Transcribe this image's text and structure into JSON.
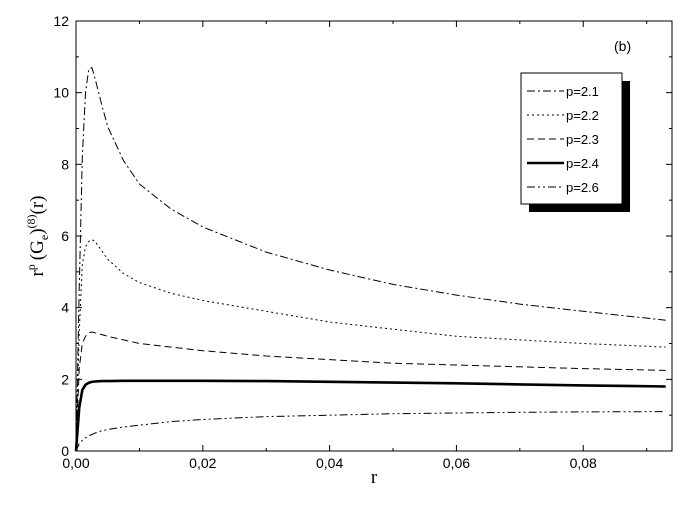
{
  "chart_data": {
    "type": "line",
    "panel_label": "(b)",
    "xlabel": "r",
    "ylabel_parts": {
      "base": "r",
      "power": "p",
      "mid": "(G",
      "sub": "e",
      "close": ")",
      "sup": "(8)",
      "end": "(r)"
    },
    "xlim": [
      0.0,
      0.094
    ],
    "ylim": [
      0,
      12
    ],
    "x_ticks": [
      0.0,
      0.02,
      0.04,
      0.06,
      0.08
    ],
    "x_tick_labels": [
      "0,00",
      "0,02",
      "0,04",
      "0,06",
      "0,08"
    ],
    "y_ticks": [
      0,
      2,
      4,
      6,
      8,
      10,
      12
    ],
    "y_tick_labels": [
      "0",
      "2",
      "4",
      "6",
      "8",
      "10",
      "12"
    ],
    "legend_position": "top-right",
    "grid": false,
    "series": [
      {
        "name": "p=2.1",
        "dash": "dashdot",
        "width": 1,
        "x": [
          0.0,
          0.0005,
          0.001,
          0.0015,
          0.002,
          0.0025,
          0.003,
          0.004,
          0.005,
          0.0075,
          0.01,
          0.015,
          0.02,
          0.03,
          0.04,
          0.05,
          0.06,
          0.07,
          0.08,
          0.093
        ],
        "y": [
          0.0,
          4.5,
          8.2,
          10.0,
          10.65,
          10.7,
          10.4,
          9.7,
          9.05,
          8.1,
          7.45,
          6.75,
          6.25,
          5.55,
          5.05,
          4.65,
          4.35,
          4.1,
          3.9,
          3.65
        ]
      },
      {
        "name": "p=2.2",
        "dash": "dotted",
        "width": 1,
        "x": [
          0.0,
          0.0005,
          0.001,
          0.0015,
          0.002,
          0.0025,
          0.003,
          0.004,
          0.005,
          0.0075,
          0.01,
          0.015,
          0.02,
          0.03,
          0.04,
          0.05,
          0.06,
          0.07,
          0.08,
          0.093
        ],
        "y": [
          0.0,
          3.3,
          5.2,
          5.7,
          5.85,
          5.9,
          5.85,
          5.6,
          5.35,
          4.95,
          4.7,
          4.4,
          4.2,
          3.9,
          3.6,
          3.4,
          3.2,
          3.1,
          3.0,
          2.9
        ]
      },
      {
        "name": "p=2.3",
        "dash": "dashed",
        "width": 1,
        "x": [
          0.0,
          0.0005,
          0.001,
          0.0015,
          0.002,
          0.0025,
          0.003,
          0.004,
          0.005,
          0.0075,
          0.01,
          0.015,
          0.02,
          0.03,
          0.04,
          0.05,
          0.06,
          0.07,
          0.08,
          0.093
        ],
        "y": [
          0.0,
          2.3,
          3.0,
          3.2,
          3.3,
          3.32,
          3.3,
          3.25,
          3.2,
          3.1,
          3.0,
          2.9,
          2.8,
          2.65,
          2.55,
          2.45,
          2.4,
          2.35,
          2.3,
          2.25
        ]
      },
      {
        "name": "p=2.4",
        "dash": "solid",
        "width": 2.6,
        "x": [
          0.0,
          0.0005,
          0.001,
          0.0015,
          0.002,
          0.0025,
          0.003,
          0.004,
          0.005,
          0.0075,
          0.01,
          0.015,
          0.02,
          0.03,
          0.04,
          0.05,
          0.06,
          0.07,
          0.08,
          0.093
        ],
        "y": [
          0.0,
          1.2,
          1.7,
          1.85,
          1.9,
          1.93,
          1.94,
          1.95,
          1.95,
          1.96,
          1.96,
          1.96,
          1.96,
          1.95,
          1.93,
          1.91,
          1.89,
          1.86,
          1.83,
          1.8
        ]
      },
      {
        "name": "p=2.6",
        "dash": "dashdotdot",
        "width": 1,
        "x": [
          0.0,
          0.0005,
          0.001,
          0.0015,
          0.002,
          0.0025,
          0.003,
          0.004,
          0.005,
          0.0075,
          0.01,
          0.015,
          0.02,
          0.03,
          0.04,
          0.05,
          0.06,
          0.07,
          0.08,
          0.093
        ],
        "y": [
          0.0,
          0.2,
          0.3,
          0.37,
          0.42,
          0.46,
          0.5,
          0.56,
          0.6,
          0.67,
          0.72,
          0.82,
          0.88,
          0.96,
          1.0,
          1.04,
          1.06,
          1.08,
          1.09,
          1.1
        ]
      }
    ]
  }
}
